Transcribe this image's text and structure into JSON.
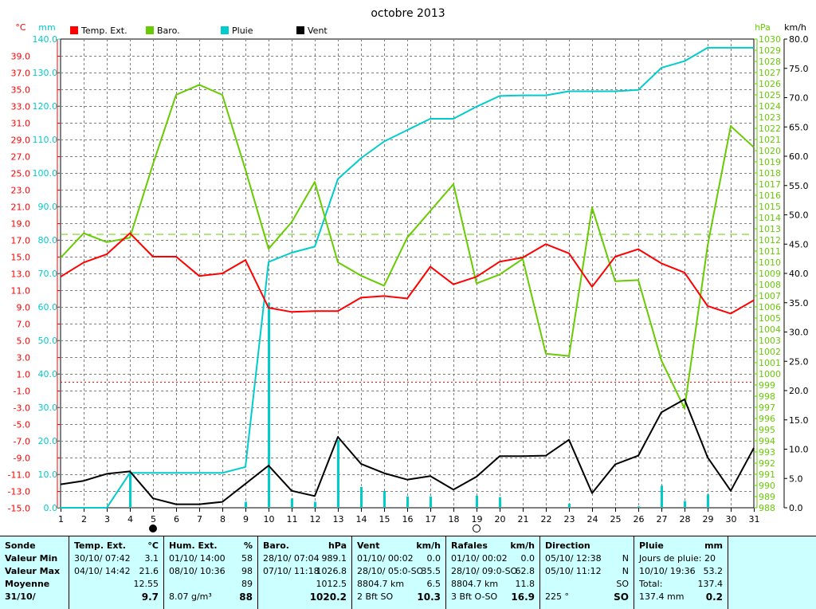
{
  "chart_data": {
    "type": "line",
    "title": "octobre 2013",
    "days": [
      "1",
      "2",
      "3",
      "4",
      "5",
      "6",
      "7",
      "8",
      "9",
      "10",
      "11",
      "12",
      "13",
      "14",
      "15",
      "16",
      "17",
      "18",
      "19",
      "20",
      "21",
      "22",
      "23",
      "24",
      "25",
      "26",
      "27",
      "28",
      "29",
      "30",
      "31"
    ],
    "unit_labels": {
      "temp": "°C",
      "rain": "mm",
      "baro": "hPa",
      "wind": "km/h"
    },
    "axes": {
      "temp": {
        "range": [
          -15.0,
          41.0
        ],
        "ticks": [
          "39.0",
          "37.0",
          "35.0",
          "33.0",
          "31.0",
          "29.0",
          "27.0",
          "25.0",
          "23.0",
          "21.0",
          "19.0",
          "17.0",
          "15.0",
          "13.0",
          "11.0",
          "9.0",
          "7.0",
          "5.0",
          "3.0",
          "1.0",
          "-1.0",
          "-3.0",
          "-5.0",
          "-7.0",
          "-9.0",
          "-11.0",
          "-13.0",
          "-15.0"
        ]
      },
      "rain": {
        "range": [
          0,
          140
        ],
        "ticks": [
          "140.0",
          "130.0",
          "120.0",
          "110.0",
          "100.0",
          "90.0",
          "80.0",
          "70.0",
          "60.0",
          "50.0",
          "40.0",
          "30.0",
          "20.0",
          "10.0",
          "0.0"
        ]
      },
      "baro": {
        "range": [
          988,
          1030
        ],
        "ticks": [
          "1030",
          "1029",
          "1028",
          "1027",
          "1026",
          "1025",
          "1024",
          "1023",
          "1022",
          "1021",
          "1020",
          "1019",
          "1018",
          "1017",
          "1016",
          "1015",
          "1014",
          "1013",
          "1012",
          "1011",
          "1010",
          "1009",
          "1008",
          "1007",
          "1006",
          "1005",
          "1004",
          "1003",
          "1002",
          "1001",
          "1000",
          "999",
          "998",
          "997",
          "996",
          "995",
          "994",
          "993",
          "992",
          "991",
          "990",
          "989",
          "988"
        ]
      },
      "wind": {
        "range": [
          0,
          80
        ],
        "ticks": [
          "80.0",
          "75.0",
          "70.0",
          "65.0",
          "60.0",
          "55.0",
          "50.0",
          "45.0",
          "40.0",
          "35.0",
          "30.0",
          "25.0",
          "20.0",
          "15.0",
          "10.0",
          "5.0",
          "0.0"
        ]
      }
    },
    "legend": [
      {
        "name": "Temp. Ext.",
        "color": "#ff0000"
      },
      {
        "name": "Baro.",
        "color": "#66cc00"
      },
      {
        "name": "Pluie",
        "color": "#00cccc"
      },
      {
        "name": "Vent",
        "color": "#000000"
      }
    ],
    "series": {
      "temp": [
        12.6,
        14.3,
        15.3,
        17.8,
        15.0,
        15.0,
        12.7,
        13.0,
        14.6,
        8.9,
        8.4,
        8.5,
        8.5,
        10.1,
        10.3,
        10.0,
        13.8,
        11.7,
        12.6,
        14.4,
        14.9,
        16.5,
        15.4,
        11.4,
        15.0,
        15.9,
        14.2,
        13.1,
        9.1,
        8.2,
        9.8
      ],
      "baro": [
        1010.4,
        1012.6,
        1011.8,
        1012.2,
        1018.8,
        1025.0,
        1025.9,
        1025.0,
        1018.3,
        1011.2,
        1013.6,
        1017.2,
        1010.0,
        1008.8,
        1007.9,
        1012.2,
        1014.6,
        1017.0,
        1008.1,
        1008.9,
        1010.3,
        1001.8,
        1001.6,
        1014.9,
        1008.3,
        1008.4,
        1001.2,
        996.9,
        1011.5,
        1022.2,
        1020.3
      ],
      "rain": [
        0,
        0,
        0,
        10.4,
        10.4,
        10.4,
        10.4,
        10.4,
        12.2,
        73.4,
        76.2,
        78.0,
        98.2,
        104.4,
        109.4,
        112.8,
        116.2,
        116.2,
        119.8,
        123.0,
        123.2,
        123.2,
        124.4,
        124.4,
        124.4,
        124.8,
        131.4,
        133.4,
        137.4,
        137.4,
        137.4
      ],
      "rain_daily": [
        0,
        0,
        0,
        10.4,
        0,
        0,
        0,
        0,
        1.8,
        61.2,
        2.8,
        1.8,
        20.2,
        6.2,
        5.0,
        3.4,
        3.4,
        0,
        3.6,
        3.2,
        0,
        0,
        1.2,
        0,
        0,
        0.4,
        6.6,
        2.0,
        4.0,
        0,
        0
      ],
      "wind": [
        4.0,
        4.6,
        5.8,
        6.2,
        1.6,
        0.6,
        0.6,
        1.0,
        4.1,
        7.2,
        2.9,
        2.0,
        12.1,
        7.5,
        5.9,
        4.8,
        5.4,
        3.1,
        5.3,
        8.8,
        8.8,
        8.9,
        11.6,
        2.5,
        7.4,
        8.9,
        16.3,
        18.5,
        8.6,
        2.9,
        10.2
      ]
    },
    "reference_lines": {
      "temp_zero": 0.0,
      "baro_mean": 1012.5
    },
    "moon_markers": [
      {
        "day": 5,
        "phase": "new"
      },
      {
        "day": 19,
        "phase": "full"
      }
    ],
    "grid": true,
    "legend_position": "top"
  },
  "colors": {
    "temp": "#ff0000",
    "baro": "#66cc00",
    "rain": "#00cccc",
    "wind": "#000000",
    "grid": "#808080",
    "panel_bg": "#ccffff"
  },
  "summary": {
    "sonde": {
      "header": "Sonde",
      "rows": [
        "Valeur Min",
        "Valeur Max",
        "Moyenne",
        "31/10/"
      ]
    },
    "temp": {
      "header": "Temp. Ext.",
      "unit": "°C",
      "min": {
        "when": "30/10/  07:42",
        "value": "3.1"
      },
      "max": {
        "when": "04/10/  14:42",
        "value": "21.6"
      },
      "avg": "12.55",
      "current": "9.7"
    },
    "hum": {
      "header": "Hum. Ext.",
      "unit": "%",
      "min": {
        "when": "01/10/  14:00",
        "value": "58"
      },
      "max": {
        "when": "08/10/  10:36",
        "value": "98"
      },
      "avg": "89",
      "abs": "8.07 g/m³",
      "current": "88"
    },
    "baro": {
      "header": "Baro.",
      "unit": "hPa",
      "min": {
        "when": "28/10/  07:04",
        "value": "989.1"
      },
      "max": {
        "when": "07/10/  11:18",
        "value": "1026.8"
      },
      "avg": "1012.5",
      "current": "1020.2"
    },
    "wind": {
      "header": "Vent",
      "unit": "km/h",
      "min": {
        "when": "01/10/  00:02",
        "value": "0.0"
      },
      "max": {
        "when": "28/10/  05:0-SO",
        "value": "35.5"
      },
      "dist": "8804.7 km",
      "avg": "6.5",
      "bft": "2 Bft SO",
      "current": "10.3"
    },
    "gust": {
      "header": "Rafales",
      "unit": "km/h",
      "min": {
        "when": "01/10/  00:02",
        "value": "0.0"
      },
      "max": {
        "when": "28/10/  09:0-SO",
        "value": "62.8"
      },
      "dist": "8804.7 km",
      "avg": "11.8",
      "bft": "3 Bft O-SO",
      "current": "16.9"
    },
    "dir": {
      "header": "Direction",
      "min": {
        "when": "05/10/  12:38",
        "value": "N"
      },
      "max": {
        "when": "05/10/  11:12",
        "value": "N"
      },
      "avg": "SO",
      "deg": "225 °",
      "current": "SO"
    },
    "rain": {
      "header": "Pluie",
      "unit": "mm",
      "days": "Jours de pluie: 20",
      "max": {
        "when": "10/10/  19:36",
        "value": "53.2"
      },
      "total_label": "Total:",
      "total": "137.4",
      "cumul": "137.4 mm",
      "current": "0.2"
    }
  }
}
